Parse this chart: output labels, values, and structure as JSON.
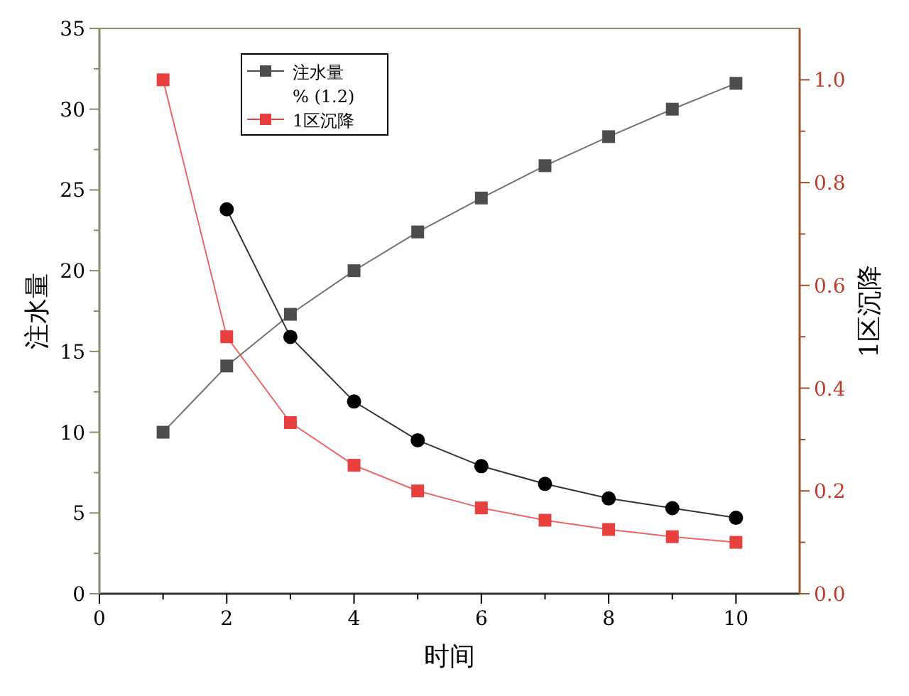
{
  "chart_data": {
    "type": "line",
    "xlabel": "时间",
    "ylabel": "注水量",
    "y2label": "1区沉降",
    "x": [
      1,
      2,
      3,
      4,
      5,
      6,
      7,
      8,
      9,
      10
    ],
    "xlim": [
      0,
      11
    ],
    "xticks": [
      0,
      {
        "value": 1,
        "label": null
      },
      2,
      {
        "value": 3,
        "label": null
      },
      4,
      {
        "value": 5,
        "label": null
      },
      6,
      {
        "value": 7,
        "label": null
      },
      8,
      {
        "value": 9,
        "label": null
      },
      10
    ],
    "ylim": [
      0,
      35
    ],
    "yticks": [
      0,
      {
        "value": 2.5,
        "label": null
      },
      5,
      {
        "value": 7.5,
        "label": null
      },
      10,
      {
        "value": 12.5,
        "label": null
      },
      15,
      {
        "value": 17.5,
        "label": null
      },
      20,
      {
        "value": 22.5,
        "label": null
      },
      25,
      {
        "value": 27.5,
        "label": null
      },
      30,
      {
        "value": 32.5,
        "label": null
      },
      35
    ],
    "y2lim": [
      0,
      1.1
    ],
    "y2ticks": [
      "0.0",
      {
        "value": 0.1,
        "label": null
      },
      {
        "value": 0.2,
        "label": "0.2"
      },
      {
        "value": 0.3,
        "label": null
      },
      {
        "value": 0.4,
        "label": "0.4"
      },
      {
        "value": 0.5,
        "label": null
      },
      {
        "value": 0.6,
        "label": "0.6"
      },
      {
        "value": 0.7,
        "label": null
      },
      {
        "value": 0.8,
        "label": "0.8"
      },
      {
        "value": 0.9,
        "label": null
      },
      {
        "value": 1.0,
        "label": "1.0"
      }
    ],
    "legend": "top left",
    "grid": false,
    "annotations": [
      "% (1.2)"
    ],
    "series": [
      {
        "name": "注水量",
        "color": "#4d4d4d",
        "marker": "square",
        "values": [
          10,
          14.1,
          17.3,
          20,
          22.4,
          24.5,
          26.5,
          28.3,
          30,
          31.6
        ]
      },
      {
        "color": "#000000",
        "marker": "circle",
        "values": [
          null,
          23.8,
          15.9,
          11.9,
          9.5,
          7.9,
          6.8,
          5.9,
          5.3,
          4.7
        ]
      },
      {
        "name": "1区沉降",
        "color": "#e83f3f",
        "marker": "square",
        "axis": "y2",
        "values": [
          1.0,
          0.5,
          0.333,
          0.25,
          0.2,
          0.167,
          0.143,
          0.125,
          0.111,
          0.1
        ]
      }
    ]
  }
}
